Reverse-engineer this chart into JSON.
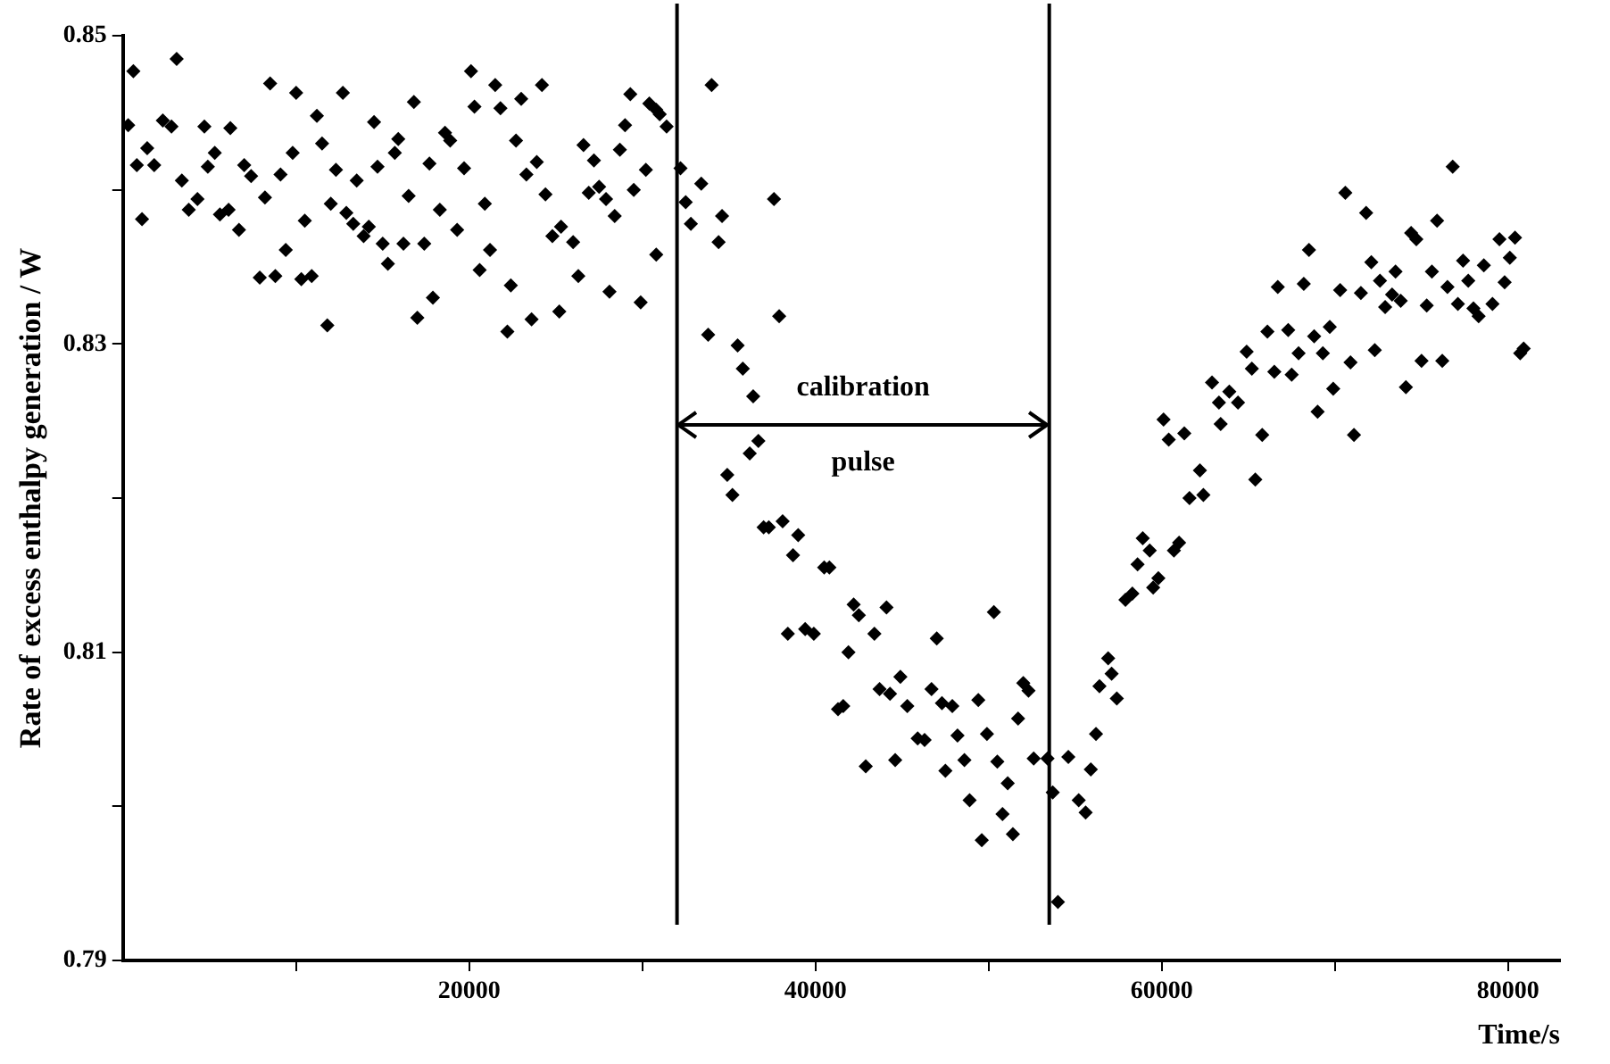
{
  "chart_data": {
    "type": "scatter",
    "ylabel": "Rate of excess enthalpy generation / W",
    "xlabel": "Time/s",
    "xlim": [
      0,
      83000
    ],
    "xticks": [
      {
        "value": 10000,
        "label": null
      },
      20000,
      {
        "value": 30000,
        "label": null
      },
      40000,
      {
        "value": 50000,
        "label": null
      },
      60000,
      {
        "value": 70000,
        "label": null
      },
      80000
    ],
    "ylim": [
      0.79,
      0.85
    ],
    "yticks": [
      0.79,
      {
        "value": 0.8,
        "label": null
      },
      0.81,
      {
        "value": 0.82,
        "label": null
      },
      0.83,
      {
        "value": 0.84,
        "label": null
      },
      0.85
    ],
    "grid": false,
    "legend": false,
    "marker": "diamond",
    "ref_lines": [
      {
        "axis": "x",
        "value": 32000,
        "label": null,
        "color": "#000000"
      },
      {
        "axis": "x",
        "value": 53500,
        "label": null,
        "color": "#000000"
      }
    ],
    "annotations": [
      "calibration",
      "pulse"
    ],
    "series": [
      {
        "color": "#000000",
        "x": [
          600,
          3100,
          300,
          1400,
          800,
          1800,
          1100,
          2300,
          2800,
          3400,
          3800,
          4300,
          4700,
          4900,
          5300,
          5600,
          6200,
          6100,
          6700,
          7000,
          7400,
          7900,
          8200,
          8500,
          8800,
          9100,
          9400,
          9800,
          10000,
          10300,
          10900,
          10500,
          11200,
          11500,
          11800,
          12000,
          12300,
          12700,
          12900,
          13300,
          13500,
          13900,
          14200,
          14500,
          14700,
          15000,
          15300,
          15700,
          15900,
          16200,
          16500,
          16800,
          17000,
          17400,
          17700,
          17900,
          18300,
          18600,
          18900,
          19300,
          19700,
          20100,
          20300,
          20600,
          20900,
          21200,
          21500,
          21800,
          22200,
          22400,
          22700,
          23000,
          23300,
          23600,
          23900,
          24200,
          24400,
          24800,
          25300,
          25200,
          26000,
          26300,
          26600,
          26900,
          27200,
          27500,
          27900,
          28100,
          28400,
          28700,
          29000,
          29300,
          29500,
          29900,
          30200,
          30400,
          30800,
          31000,
          31400,
          30800,
          32200,
          34000,
          33400,
          32500,
          32800,
          34600,
          34400,
          37600,
          37900,
          33800,
          35500,
          35800,
          36400,
          36700,
          36200,
          34900,
          35200,
          37000,
          37300,
          38100,
          39000,
          38700,
          40500,
          40800,
          42200,
          42500,
          44100,
          43400,
          38400,
          39400,
          39900,
          41900,
          47000,
          50300,
          41300,
          41600,
          43700,
          44300,
          44900,
          45300,
          46700,
          47300,
          47900,
          49400,
          52000,
          52300,
          45900,
          46300,
          48200,
          49900,
          51700,
          42900,
          44600,
          47500,
          48600,
          50500,
          51100,
          52600,
          53400,
          48900,
          50800,
          49600,
          51400,
          53700,
          54600,
          55200,
          55600,
          55900,
          54000,
          56200,
          56400,
          56900,
          57100,
          57400,
          57900,
          58300,
          58600,
          58900,
          59300,
          59500,
          59800,
          60700,
          61000,
          61600,
          62400,
          62200,
          65400,
          60100,
          60400,
          61300,
          63400,
          62900,
          63300,
          63900,
          64400,
          65800,
          65200,
          64900,
          66100,
          66500,
          67300,
          67500,
          67900,
          68800,
          69700,
          69300,
          69000,
          69900,
          70900,
          71100,
          66700,
          68200,
          68500,
          70300,
          70600,
          71500,
          71800,
          72100,
          72300,
          72600,
          72900,
          73300,
          73500,
          73800,
          74100,
          74400,
          74700,
          75000,
          75300,
          75600,
          75900,
          76200,
          76500,
          76800,
          77100,
          77400,
          77700,
          78000,
          78300,
          78600,
          79100,
          79500,
          79800,
          80100,
          80400,
          80700,
          80900
        ],
        "values": [
          0.8477,
          0.8485,
          0.8442,
          0.8427,
          0.8416,
          0.8416,
          0.8381,
          0.8445,
          0.8441,
          0.8406,
          0.8387,
          0.8394,
          0.8441,
          0.8415,
          0.8424,
          0.8384,
          0.844,
          0.8387,
          0.8374,
          0.8416,
          0.8409,
          0.8343,
          0.8395,
          0.8469,
          0.8344,
          0.841,
          0.8361,
          0.8424,
          0.8463,
          0.8342,
          0.8344,
          0.838,
          0.8448,
          0.843,
          0.8312,
          0.8391,
          0.8413,
          0.8463,
          0.8385,
          0.8378,
          0.8406,
          0.837,
          0.8376,
          0.8444,
          0.8415,
          0.8365,
          0.8352,
          0.8424,
          0.8433,
          0.8365,
          0.8396,
          0.8457,
          0.8317,
          0.8365,
          0.8417,
          0.833,
          0.8387,
          0.8437,
          0.8432,
          0.8374,
          0.8414,
          0.8477,
          0.8454,
          0.8348,
          0.8391,
          0.8361,
          0.8468,
          0.8453,
          0.8308,
          0.8338,
          0.8432,
          0.8459,
          0.841,
          0.8316,
          0.8418,
          0.8468,
          0.8397,
          0.837,
          0.8376,
          0.8321,
          0.8366,
          0.8344,
          0.8429,
          0.8398,
          0.8419,
          0.8402,
          0.8394,
          0.8334,
          0.8383,
          0.8426,
          0.8442,
          0.8462,
          0.84,
          0.8327,
          0.8413,
          0.8456,
          0.8452,
          0.8449,
          0.8441,
          0.8358,
          0.8414,
          0.8468,
          0.8404,
          0.8392,
          0.8378,
          0.8383,
          0.8366,
          0.8394,
          0.8318,
          0.8306,
          0.8299,
          0.8284,
          0.8266,
          0.8237,
          0.8229,
          0.8215,
          0.8202,
          0.8181,
          0.8181,
          0.8185,
          0.8176,
          0.8163,
          0.8155,
          0.8155,
          0.8131,
          0.8124,
          0.8129,
          0.8112,
          0.8112,
          0.8115,
          0.8112,
          0.81,
          0.8109,
          0.8126,
          0.8063,
          0.8065,
          0.8076,
          0.8073,
          0.8084,
          0.8065,
          0.8076,
          0.8067,
          0.8065,
          0.8069,
          0.808,
          0.8075,
          0.8044,
          0.8043,
          0.8046,
          0.8047,
          0.8057,
          0.8026,
          0.803,
          0.8023,
          0.803,
          0.8029,
          0.8015,
          0.8031,
          0.8031,
          0.8004,
          0.7995,
          0.7978,
          0.7982,
          0.8009,
          0.8032,
          0.8004,
          0.7996,
          0.8024,
          0.7938,
          0.8047,
          0.8078,
          0.8096,
          0.8086,
          0.807,
          0.8134,
          0.8138,
          0.8157,
          0.8174,
          0.8166,
          0.8142,
          0.8148,
          0.8166,
          0.8171,
          0.82,
          0.8202,
          0.8218,
          0.8212,
          0.8251,
          0.8238,
          0.8242,
          0.8248,
          0.8275,
          0.8262,
          0.8269,
          0.8262,
          0.8241,
          0.8284,
          0.8295,
          0.8308,
          0.8282,
          0.8309,
          0.828,
          0.8294,
          0.8305,
          0.8311,
          0.8294,
          0.8256,
          0.8271,
          0.8288,
          0.8241,
          0.8337,
          0.8339,
          0.8361,
          0.8335,
          0.8398,
          0.8333,
          0.8385,
          0.8353,
          0.8296,
          0.8341,
          0.8324,
          0.8332,
          0.8347,
          0.8328,
          0.8272,
          0.8372,
          0.8368,
          0.8289,
          0.8325,
          0.8347,
          0.838,
          0.8289,
          0.8337,
          0.8415,
          0.8326,
          0.8354,
          0.8341,
          0.8323,
          0.8318,
          0.8351,
          0.8326,
          0.8368,
          0.834,
          0.8356,
          0.8369,
          0.8294,
          0.8297
        ]
      }
    ]
  }
}
